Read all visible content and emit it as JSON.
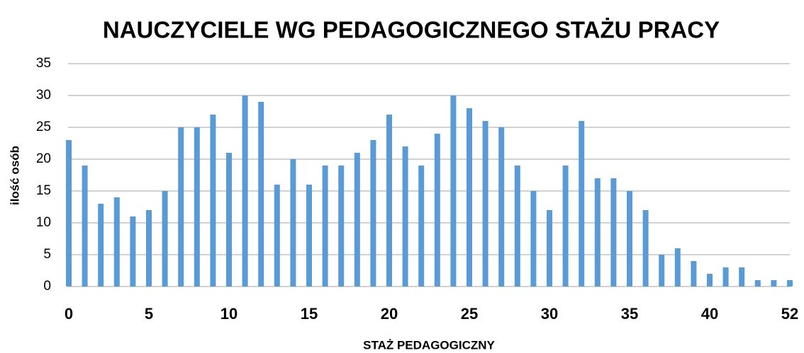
{
  "chart_data": {
    "type": "bar",
    "title": "NAUCZYCIELE  WG PEDAGOGICZNEGO  STAŻU  PRACY",
    "x_label": "STAŻ PEDAGOGICZNY",
    "y_label": "ilość osób",
    "categories": [
      "0",
      null,
      null,
      null,
      null,
      "5",
      null,
      null,
      null,
      null,
      "10",
      null,
      null,
      null,
      null,
      "15",
      null,
      null,
      null,
      null,
      "20",
      null,
      null,
      null,
      null,
      "25",
      null,
      null,
      null,
      null,
      "30",
      null,
      null,
      null,
      null,
      "35",
      null,
      null,
      null,
      null,
      "40",
      null,
      null,
      null,
      null,
      "52"
    ],
    "values": [
      23,
      19,
      13,
      14,
      11,
      12,
      15,
      25,
      25,
      27,
      21,
      30,
      29,
      16,
      20,
      16,
      19,
      19,
      21,
      23,
      27,
      22,
      19,
      24,
      30,
      28,
      26,
      25,
      19,
      15,
      12,
      19,
      26,
      17,
      17,
      15,
      12,
      5,
      6,
      4,
      2,
      3,
      3,
      1,
      1,
      1
    ],
    "color": "#5b9bd5",
    "ylim": [
      0,
      35
    ],
    "yticks": [
      0,
      5,
      10,
      15,
      20,
      25,
      30,
      35
    ],
    "grid": true
  }
}
